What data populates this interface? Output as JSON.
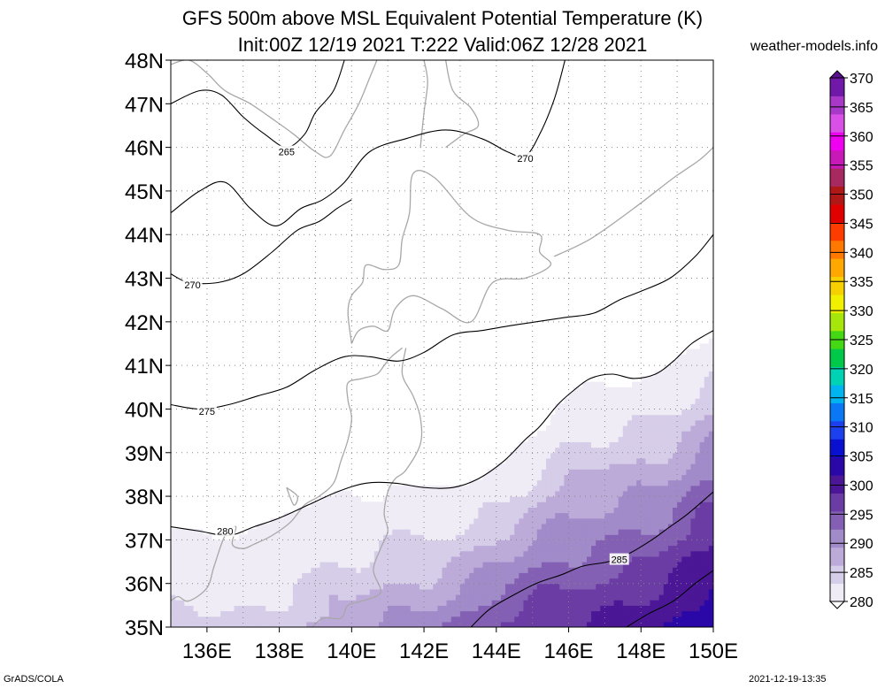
{
  "title_line1": "GFS 500m above MSL Equivalent Potential Temperature (K)",
  "title_line2": "Init:00Z 12/19 2021 T:222 Valid:06Z 12/28 2021",
  "credit": "weather-models.info",
  "footer_left": "GrADS/COLA",
  "footer_right": "2021-12-19-13:35",
  "chart_data": {
    "type": "heatmap",
    "title": "GFS 500m above MSL Equivalent Potential Temperature (K)",
    "subtitle": "Init:00Z 12/19 2021 T:222 Valid:06Z 12/28 2021",
    "x_ticks": [
      "136E",
      "138E",
      "140E",
      "142E",
      "144E",
      "146E",
      "148E",
      "150E"
    ],
    "y_ticks": [
      "35N",
      "36N",
      "37N",
      "38N",
      "39N",
      "40N",
      "41N",
      "42N",
      "43N",
      "44N",
      "45N",
      "46N",
      "47N",
      "48N"
    ],
    "xlim": [
      135,
      150
    ],
    "ylim": [
      35,
      48
    ],
    "grid": true,
    "colorbar": {
      "labels": [
        "280",
        "285",
        "290",
        "295",
        "300",
        "305",
        "310",
        "315",
        "320",
        "325",
        "330",
        "335",
        "340",
        "345",
        "350",
        "355",
        "360",
        "365",
        "370"
      ],
      "range": [
        280,
        370
      ],
      "step": 5,
      "colors": [
        "#f0ecf6",
        "#d6cde8",
        "#bcaad8",
        "#a18bc9",
        "#8460b4",
        "#6a3ca4",
        "#4b1796",
        "#2a08a8",
        "#0a10d0",
        "#1c40ee",
        "#0a78f5",
        "#00b4f0",
        "#00d2b4",
        "#00c848",
        "#44d814",
        "#a6e60a",
        "#f0f000",
        "#f6d000",
        "#ffa800",
        "#ff7800",
        "#ff3c00",
        "#e00000",
        "#b01818",
        "#a82860",
        "#c818b8",
        "#f000f0",
        "#d850e6",
        "#a838c8",
        "#7018a8"
      ]
    },
    "shaded_bands": [
      {
        "min": 280,
        "max": 281.5,
        "color": "#f0ecf6"
      },
      {
        "min": 281.5,
        "max": 282.5,
        "color": "#d6cde8"
      },
      {
        "min": 282.5,
        "max": 283.5,
        "color": "#bcaad8"
      },
      {
        "min": 283.5,
        "max": 284.5,
        "color": "#a18bc9"
      },
      {
        "min": 284.5,
        "max": 285.5,
        "color": "#8460b4"
      },
      {
        "min": 285.5,
        "max": 286.5,
        "color": "#6a3ca4"
      },
      {
        "min": 286.5,
        "max": 288,
        "color": "#4b1796"
      },
      {
        "min": 288,
        "max": 290,
        "color": "#2a08a8"
      }
    ],
    "contours": [
      {
        "value": 265,
        "label": "265",
        "points": [
          [
            135,
            47
          ],
          [
            135.8,
            47.3
          ],
          [
            136.4,
            47.2
          ],
          [
            137.0,
            46.7
          ],
          [
            137.6,
            46.3
          ],
          [
            138.2,
            46.0
          ],
          [
            138.7,
            46.3
          ],
          [
            139.0,
            46.8
          ],
          [
            139.5,
            47.3
          ],
          [
            139.8,
            48
          ]
        ],
        "label_at": [
          138.2,
          45.9
        ]
      },
      {
        "value": 270,
        "label": "270",
        "points": [
          [
            135,
            44.5
          ],
          [
            135.8,
            45.0
          ],
          [
            136.5,
            45.2
          ],
          [
            137.2,
            44.6
          ],
          [
            137.9,
            44.2
          ],
          [
            138.6,
            44.6
          ],
          [
            139.2,
            44.8
          ],
          [
            139.8,
            45.2
          ],
          [
            140.5,
            45.9
          ],
          [
            141.5,
            46.2
          ],
          [
            142.6,
            46.4
          ],
          [
            143.6,
            46.2
          ],
          [
            144.3,
            45.9
          ],
          [
            144.8,
            45.8
          ],
          [
            145.2,
            46.3
          ],
          [
            145.6,
            47.1
          ],
          [
            145.9,
            48
          ]
        ],
        "label_at": [
          144.8,
          45.75
        ]
      },
      {
        "value": 270,
        "label": "270",
        "points": [
          [
            135,
            43.1
          ],
          [
            135.5,
            42.9
          ],
          [
            136.3,
            42.9
          ],
          [
            137.0,
            43.1
          ],
          [
            137.8,
            43.6
          ],
          [
            138.5,
            44.1
          ],
          [
            139.1,
            44.3
          ],
          [
            139.6,
            44.6
          ],
          [
            140.0,
            44.8
          ]
        ],
        "label_at": [
          135.6,
          42.85
        ]
      },
      {
        "value": 275,
        "label": "275",
        "points": [
          [
            135,
            40.1
          ],
          [
            135.8,
            40.0
          ],
          [
            136.6,
            40.1
          ],
          [
            137.4,
            40.3
          ],
          [
            138.2,
            40.5
          ],
          [
            139.0,
            40.9
          ],
          [
            139.8,
            41.2
          ],
          [
            140.5,
            41.2
          ],
          [
            141.3,
            41.1
          ],
          [
            142.0,
            41.3
          ],
          [
            142.8,
            41.7
          ],
          [
            143.6,
            41.8
          ],
          [
            144.3,
            41.9
          ],
          [
            145.1,
            42.0
          ],
          [
            145.9,
            42.1
          ],
          [
            146.7,
            42.2
          ],
          [
            147.4,
            42.5
          ],
          [
            148.0,
            42.7
          ],
          [
            148.8,
            43.0
          ],
          [
            149.5,
            43.5
          ],
          [
            150,
            44.0
          ]
        ],
        "label_at": [
          136.0,
          39.95
        ]
      },
      {
        "value": 280,
        "label": "280",
        "points": [
          [
            135,
            37.3
          ],
          [
            135.8,
            37.2
          ],
          [
            136.6,
            37.1
          ],
          [
            137.3,
            37.3
          ],
          [
            138.0,
            37.5
          ],
          [
            138.8,
            37.8
          ],
          [
            139.6,
            38.1
          ],
          [
            140.4,
            38.3
          ],
          [
            141.2,
            38.3
          ],
          [
            142.0,
            38.2
          ],
          [
            142.8,
            38.2
          ],
          [
            143.5,
            38.4
          ],
          [
            144.2,
            38.8
          ],
          [
            144.8,
            39.3
          ],
          [
            145.2,
            39.6
          ],
          [
            145.7,
            40.1
          ],
          [
            146.1,
            40.4
          ],
          [
            146.6,
            40.7
          ],
          [
            147.2,
            40.8
          ],
          [
            147.8,
            40.7
          ],
          [
            148.4,
            40.8
          ],
          [
            148.9,
            41.1
          ],
          [
            149.4,
            41.5
          ],
          [
            150,
            41.8
          ]
        ],
        "label_at": [
          136.5,
          37.2
        ]
      },
      {
        "value": 285,
        "label": "285",
        "points": [
          [
            143.3,
            35
          ],
          [
            143.8,
            35.4
          ],
          [
            144.4,
            35.7
          ],
          [
            145.1,
            36.0
          ],
          [
            145.8,
            36.2
          ],
          [
            146.4,
            36.4
          ],
          [
            147.1,
            36.5
          ],
          [
            147.7,
            36.7
          ],
          [
            148.3,
            37.0
          ],
          [
            148.8,
            37.3
          ],
          [
            149.3,
            37.6
          ],
          [
            150,
            38.1
          ]
        ],
        "label_at": [
          147.4,
          36.55
        ]
      },
      {
        "value": 285,
        "label": "",
        "points": [
          [
            147.6,
            35
          ],
          [
            148.2,
            35.3
          ],
          [
            148.9,
            35.6
          ],
          [
            149.5,
            36.0
          ],
          [
            150,
            36.3
          ]
        ],
        "label_at": null
      }
    ]
  }
}
